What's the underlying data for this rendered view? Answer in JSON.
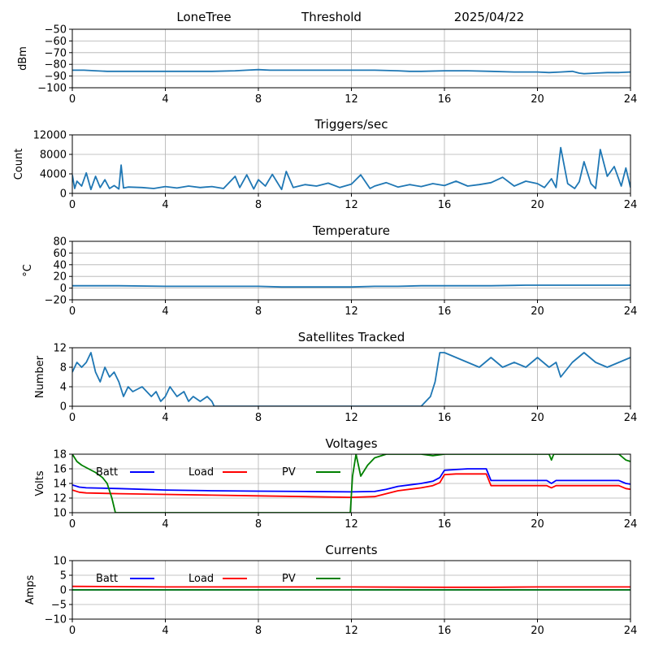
{
  "header": {
    "station": "LoneTree",
    "mode": "Threshold",
    "date": "2025/04/22"
  },
  "colors": {
    "series": "#1f77b4",
    "batt": "#0000ff",
    "load": "#ff0000",
    "pv": "#008000",
    "grid": "#b0b0b0"
  },
  "chart_data": [
    {
      "type": "line",
      "title": "",
      "xlabel": "",
      "ylabel": "dBm",
      "xlim": [
        0,
        24
      ],
      "ylim": [
        -100,
        -50
      ],
      "xticks": [
        0,
        4,
        8,
        12,
        16,
        20,
        24
      ],
      "yticks": [
        -100,
        -90,
        -80,
        -70,
        -60,
        -50
      ],
      "grid": true,
      "series": [
        {
          "name": "",
          "color": "#1f77b4",
          "x": [
            0,
            0.5,
            1,
            1.5,
            2,
            3,
            4,
            5,
            6,
            7,
            7.5,
            8,
            8.5,
            9,
            10,
            11,
            12,
            13,
            14,
            14.5,
            15,
            16,
            17,
            18,
            19,
            20,
            20.5,
            21,
            21.5,
            21.8,
            22,
            22.5,
            23,
            23.5,
            24
          ],
          "y": [
            -85,
            -85,
            -85.5,
            -86,
            -86,
            -86,
            -86,
            -86,
            -86,
            -85.5,
            -85,
            -84.5,
            -85,
            -85,
            -85,
            -85,
            -85,
            -85,
            -85.5,
            -86,
            -86,
            -85.5,
            -85.5,
            -86,
            -86.5,
            -86.5,
            -87,
            -86.5,
            -86,
            -87.5,
            -88,
            -87.5,
            -87,
            -87,
            -86.5
          ]
        }
      ]
    },
    {
      "type": "line",
      "title": "Triggers/sec",
      "xlabel": "",
      "ylabel": "Count",
      "xlim": [
        0,
        24
      ],
      "ylim": [
        0,
        12000
      ],
      "xticks": [
        0,
        4,
        8,
        12,
        16,
        20,
        24
      ],
      "yticks": [
        0,
        4000,
        8000,
        12000
      ],
      "grid": true,
      "series": [
        {
          "name": "",
          "color": "#1f77b4",
          "x": [
            0,
            0.1,
            0.2,
            0.4,
            0.6,
            0.8,
            1,
            1.2,
            1.4,
            1.6,
            1.8,
            2,
            2.1,
            2.2,
            2.4,
            3,
            3.5,
            4,
            4.5,
            5,
            5.5,
            6,
            6.5,
            7,
            7.2,
            7.5,
            7.8,
            8,
            8.3,
            8.6,
            9,
            9.2,
            9.5,
            10,
            10.5,
            11,
            11.5,
            12,
            12.4,
            12.8,
            13,
            13.5,
            14,
            14.5,
            15,
            15.5,
            16,
            16.5,
            17,
            17.5,
            18,
            18.5,
            19,
            19.5,
            20,
            20.3,
            20.6,
            20.8,
            21,
            21.3,
            21.6,
            21.8,
            22,
            22.3,
            22.5,
            22.7,
            23,
            23.3,
            23.6,
            23.8,
            24
          ],
          "y": [
            3800,
            1000,
            2500,
            1500,
            4200,
            800,
            3500,
            1200,
            2800,
            1000,
            1600,
            900,
            5800,
            1100,
            1300,
            1200,
            1000,
            1400,
            1100,
            1500,
            1200,
            1400,
            1000,
            3500,
            1200,
            3800,
            900,
            2800,
            1500,
            3900,
            800,
            4500,
            1200,
            1800,
            1500,
            2100,
            1200,
            1900,
            3800,
            1000,
            1500,
            2200,
            1300,
            1800,
            1400,
            2000,
            1600,
            2500,
            1500,
            1800,
            2200,
            3300,
            1500,
            2500,
            2000,
            1200,
            3000,
            1200,
            9400,
            2000,
            1000,
            2400,
            6500,
            2000,
            1000,
            9000,
            3500,
            5500,
            1500,
            5200,
            1200
          ]
        }
      ]
    },
    {
      "type": "line",
      "title": "Temperature",
      "xlabel": "",
      "ylabel": "°C",
      "xlim": [
        0,
        24
      ],
      "ylim": [
        -20,
        80
      ],
      "xticks": [
        0,
        4,
        8,
        12,
        16,
        20,
        24
      ],
      "yticks": [
        -20,
        0,
        20,
        40,
        60,
        80
      ],
      "grid": true,
      "series": [
        {
          "name": "",
          "color": "#1f77b4",
          "x": [
            0,
            2,
            4,
            6,
            8,
            9,
            10,
            12,
            13,
            14,
            15,
            16,
            18,
            19.5,
            20,
            21,
            22,
            24
          ],
          "y": [
            4,
            4,
            3,
            3,
            3,
            2,
            2,
            2,
            3,
            3,
            4,
            4,
            4,
            5,
            5,
            5,
            5,
            5
          ]
        }
      ]
    },
    {
      "type": "line",
      "title": "Satellites Tracked",
      "xlabel": "",
      "ylabel": "Number",
      "xlim": [
        0,
        24
      ],
      "ylim": [
        0,
        12
      ],
      "xticks": [
        0,
        4,
        8,
        12,
        16,
        20,
        24
      ],
      "yticks": [
        0,
        4,
        8,
        12
      ],
      "grid": true,
      "series": [
        {
          "name": "",
          "color": "#1f77b4",
          "x": [
            0,
            0.2,
            0.4,
            0.6,
            0.8,
            1,
            1.2,
            1.4,
            1.6,
            1.8,
            2,
            2.2,
            2.4,
            2.6,
            3,
            3.2,
            3.4,
            3.6,
            3.8,
            4,
            4.2,
            4.5,
            4.8,
            5,
            5.2,
            5.5,
            5.8,
            6,
            6.1,
            8,
            10,
            12,
            14,
            15,
            15.2,
            15.4,
            15.6,
            15.8,
            16,
            16.5,
            17,
            17.5,
            18,
            18.5,
            19,
            19.5,
            20,
            20.5,
            20.8,
            21,
            21.5,
            22,
            22.5,
            23,
            23.5,
            24
          ],
          "y": [
            7,
            9,
            8,
            9,
            11,
            7,
            5,
            8,
            6,
            7,
            5,
            2,
            4,
            3,
            4,
            3,
            2,
            3,
            1,
            2,
            4,
            2,
            3,
            1,
            2,
            1,
            2,
            1,
            0,
            0,
            0,
            0,
            0,
            0,
            1,
            2,
            5,
            11,
            11,
            10,
            9,
            8,
            10,
            8,
            9,
            8,
            10,
            8,
            9,
            6,
            9,
            11,
            9,
            8,
            9,
            10
          ]
        }
      ]
    },
    {
      "type": "line",
      "title": "Voltages",
      "xlabel": "",
      "ylabel": "Volts",
      "xlim": [
        0,
        24
      ],
      "ylim": [
        10,
        18
      ],
      "xticks": [
        0,
        4,
        8,
        12,
        16,
        20,
        24
      ],
      "yticks": [
        10,
        12,
        14,
        16,
        18
      ],
      "grid": true,
      "legend": {
        "placement": "top",
        "entries": [
          "Batt",
          "Load",
          "PV"
        ]
      },
      "series": [
        {
          "name": "Batt",
          "color": "#0000ff",
          "x": [
            0,
            0.3,
            0.6,
            2,
            4,
            6,
            8,
            10,
            12,
            13,
            13.5,
            14,
            15,
            15.5,
            15.8,
            16,
            16.5,
            17,
            17.5,
            17.8,
            18,
            19,
            20,
            20.4,
            20.6,
            20.8,
            21,
            22,
            23,
            23.5,
            23.8,
            24
          ],
          "y": [
            13.8,
            13.5,
            13.4,
            13.3,
            13.1,
            13.0,
            12.95,
            12.9,
            12.85,
            12.9,
            13.2,
            13.6,
            14.0,
            14.3,
            14.8,
            15.8,
            15.9,
            16.0,
            16.0,
            16.0,
            14.4,
            14.4,
            14.4,
            14.4,
            14.0,
            14.4,
            14.4,
            14.4,
            14.4,
            14.4,
            14.0,
            13.9
          ]
        },
        {
          "name": "Load",
          "color": "#ff0000",
          "x": [
            0,
            0.3,
            0.6,
            2,
            4,
            6,
            8,
            10,
            12,
            13,
            13.5,
            14,
            15,
            15.5,
            15.8,
            16,
            16.5,
            17,
            17.5,
            17.8,
            18,
            19,
            20,
            20.4,
            20.6,
            20.8,
            21,
            22,
            23,
            23.5,
            23.8,
            24
          ],
          "y": [
            13.1,
            12.8,
            12.7,
            12.6,
            12.5,
            12.4,
            12.3,
            12.2,
            12.1,
            12.2,
            12.6,
            13.0,
            13.4,
            13.7,
            14.1,
            15.2,
            15.3,
            15.3,
            15.3,
            15.3,
            13.7,
            13.7,
            13.7,
            13.7,
            13.4,
            13.7,
            13.7,
            13.7,
            13.7,
            13.7,
            13.3,
            13.2
          ]
        },
        {
          "name": "PV",
          "color": "#008000",
          "x": [
            0,
            0.2,
            0.4,
            0.7,
            1,
            1.3,
            1.5,
            1.7,
            1.85,
            1.9,
            11.95,
            12.05,
            12.2,
            12.4,
            12.7,
            13,
            13.5,
            14,
            14.5,
            15,
            15.5,
            16,
            17,
            18,
            19,
            20,
            20.5,
            20.6,
            20.7,
            21,
            22,
            22.5,
            23,
            23.5,
            23.8,
            24
          ],
          "y": [
            18,
            17,
            16.5,
            16,
            15.5,
            14.8,
            14,
            12,
            10,
            10,
            10,
            15,
            18,
            15,
            16.5,
            17.5,
            18,
            18,
            18,
            18,
            17.8,
            18,
            18,
            18,
            18,
            18,
            18,
            17.2,
            18,
            18,
            18,
            18,
            18,
            18,
            17.2,
            17
          ]
        }
      ]
    },
    {
      "type": "line",
      "title": "Currents",
      "xlabel": "",
      "ylabel": "Amps",
      "xlim": [
        0,
        24
      ],
      "ylim": [
        -10,
        10
      ],
      "xticks": [
        0,
        4,
        8,
        12,
        16,
        20,
        24
      ],
      "yticks": [
        -10,
        -5,
        0,
        5,
        10
      ],
      "grid": true,
      "legend": {
        "placement": "top",
        "entries": [
          "Batt",
          "Load",
          "PV"
        ]
      },
      "series": [
        {
          "name": "Batt",
          "color": "#0000ff",
          "x": [
            0,
            24
          ],
          "y": [
            0,
            0
          ]
        },
        {
          "name": "Load",
          "color": "#ff0000",
          "x": [
            0,
            2,
            4,
            8,
            12,
            16,
            18,
            20,
            24
          ],
          "y": [
            1.2,
            1.1,
            1.0,
            1.0,
            1.0,
            0.9,
            0.9,
            1.0,
            1.0
          ]
        },
        {
          "name": "PV",
          "color": "#008000",
          "x": [
            0,
            24
          ],
          "y": [
            0,
            0
          ]
        }
      ]
    }
  ]
}
